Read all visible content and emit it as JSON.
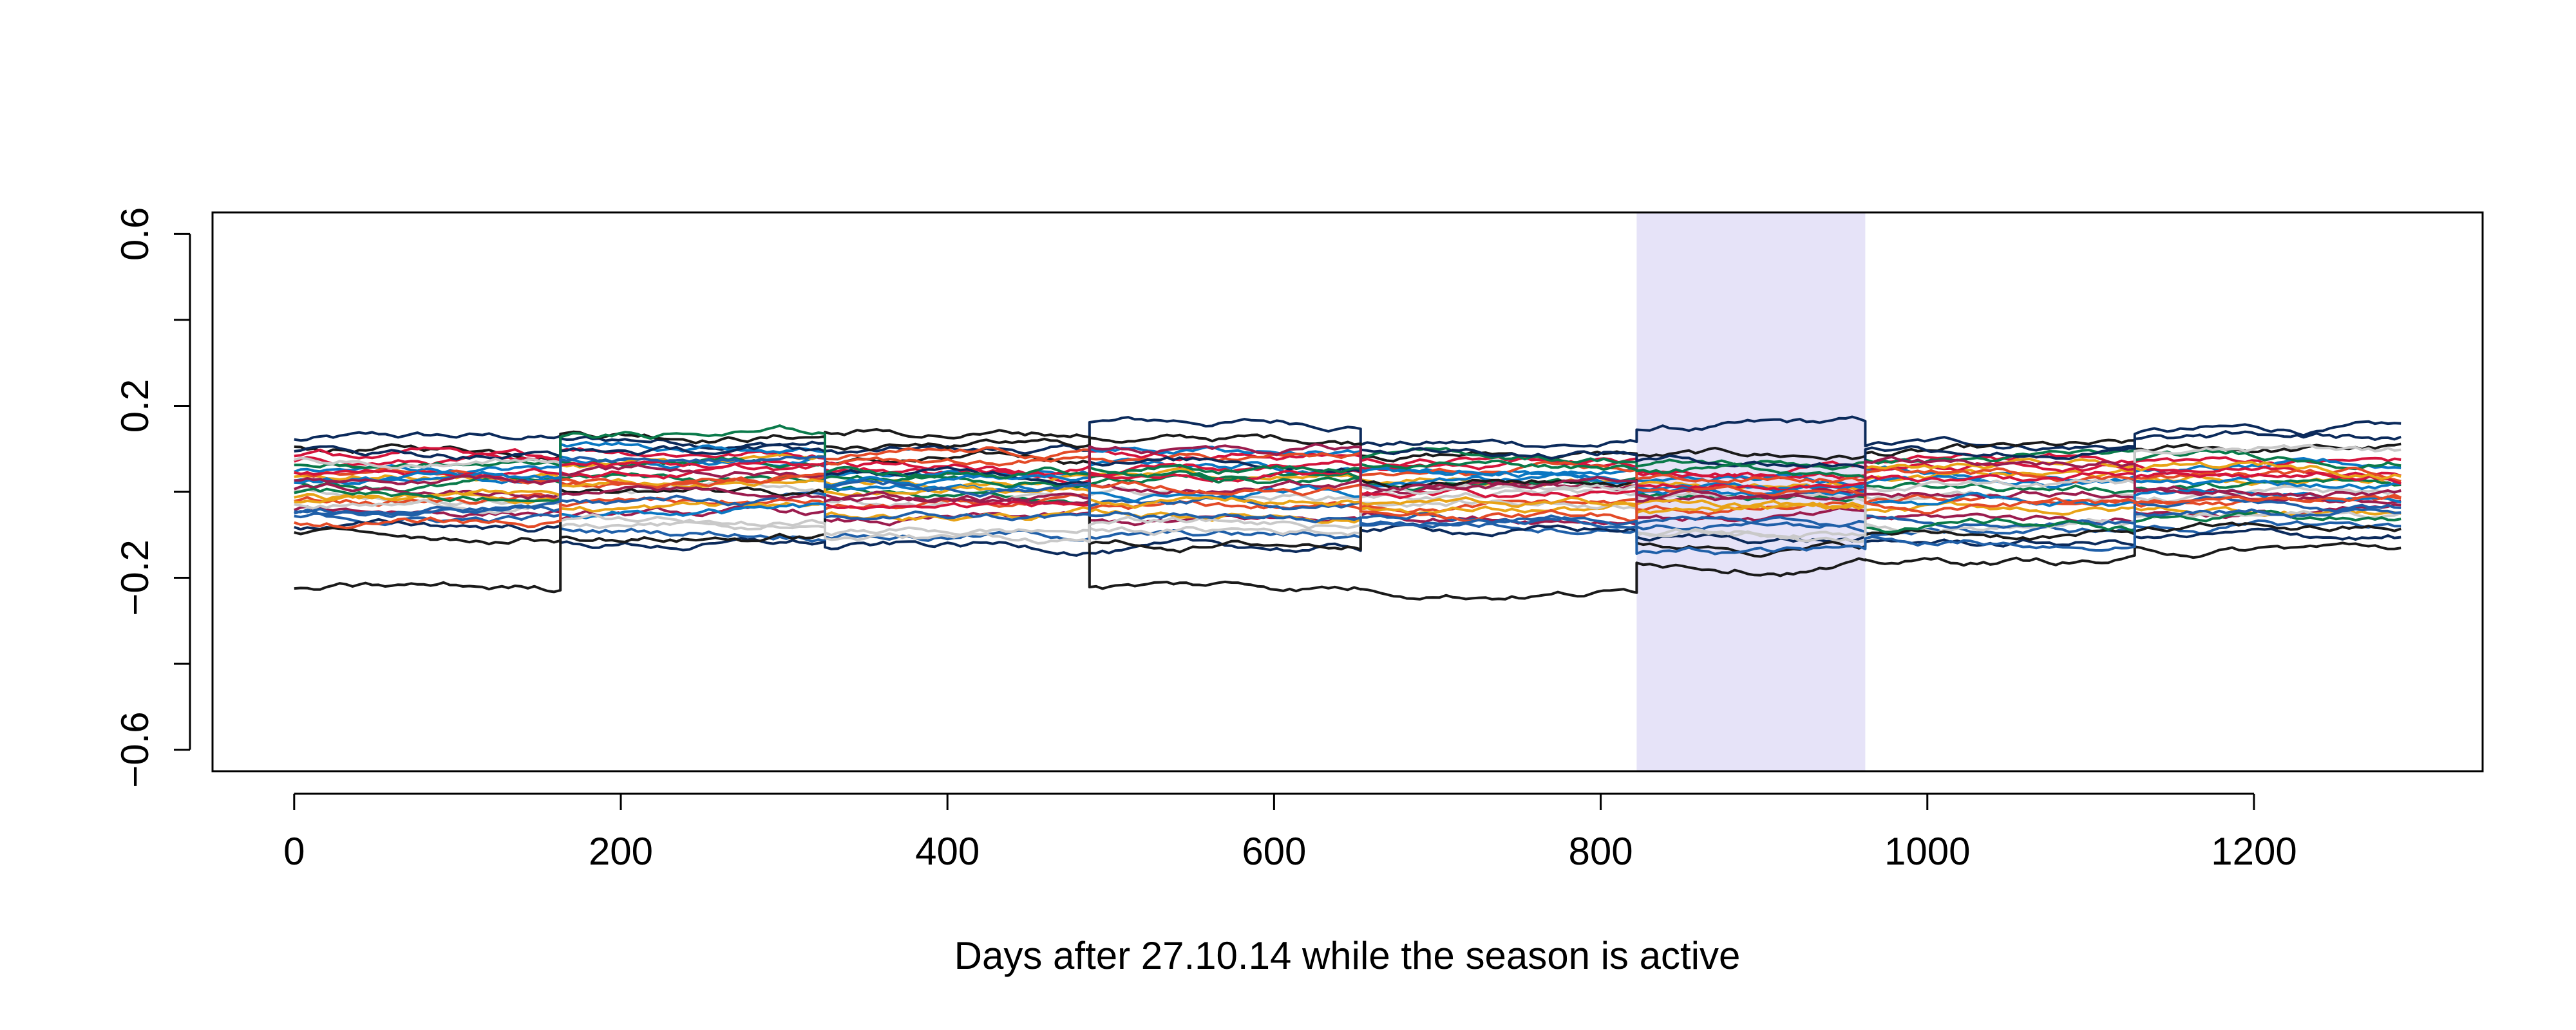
{
  "chart_data": {
    "type": "line",
    "title": "",
    "xlabel": "Days after 27.10.14 while the season is active",
    "ylabel": "",
    "xlim": [
      -50,
      1340
    ],
    "ylim": [
      -0.65,
      0.65
    ],
    "x_ticks": [
      0,
      200,
      400,
      600,
      800,
      1000,
      1200
    ],
    "x_tick_labels": [
      "0",
      "200",
      "400",
      "600",
      "800",
      "1000",
      "1200"
    ],
    "y_ticks": [
      -0.6,
      -0.4,
      -0.2,
      0,
      0.2,
      0.4,
      0.6
    ],
    "y_tick_labels": [
      "−0.6",
      "",
      "−0.2",
      "",
      "0.2",
      "",
      "0.6"
    ],
    "grid": false,
    "legend": "none",
    "highlight_region": {
      "x_start": 822,
      "x_end": 962,
      "color": "#e6e3f8"
    },
    "season_boundaries": [
      0,
      163,
      325,
      487,
      653,
      822,
      962,
      1127,
      1290
    ],
    "line_colors": [
      "#0b2a5b",
      "#1a1a1a",
      "#d4143c",
      "#0a77c2",
      "#e8a317",
      "#0a7a4a",
      "#c9c9c9",
      "#e34a27",
      "#9b1c4e",
      "#1f5fa8"
    ],
    "series_count": 30,
    "series_baselines_by_season": [
      [
        0.12,
        0.1,
        0.07,
        0.05,
        0.04,
        0.02,
        0.0,
        -0.02,
        -0.04,
        -0.06,
        -0.08,
        -0.23,
        0.08,
        0.03,
        -0.01,
        0.06,
        -0.03,
        0.05,
        0.01,
        -0.05,
        0.09,
        -0.1,
        0.04,
        0.02,
        -0.02,
        0.0,
        0.07,
        -0.07,
        0.03,
        -0.04
      ],
      [
        0.12,
        0.14,
        0.1,
        0.08,
        0.06,
        0.03,
        0.0,
        -0.03,
        -0.06,
        -0.09,
        -0.12,
        -0.1,
        0.05,
        0.11,
        -0.04,
        0.07,
        -0.08,
        0.02,
        0.04,
        -0.02,
        0.09,
        0.0,
        0.06,
        -0.05,
        0.01,
        0.13,
        -0.07,
        0.03,
        -0.01,
        0.08
      ],
      [
        0.09,
        0.07,
        0.05,
        0.04,
        0.02,
        0.0,
        -0.02,
        -0.04,
        -0.07,
        -0.1,
        -0.13,
        0.14,
        0.06,
        0.01,
        -0.05,
        0.03,
        -0.09,
        0.08,
        -0.01,
        -0.06,
        0.04,
        0.1,
        -0.03,
        0.02,
        0.0,
        0.05,
        -0.11,
        0.07,
        -0.02,
        0.01
      ],
      [
        0.16,
        0.12,
        0.09,
        0.06,
        0.04,
        0.02,
        -0.01,
        -0.04,
        -0.07,
        -0.11,
        -0.14,
        -0.22,
        0.05,
        0.1,
        -0.05,
        0.03,
        -0.09,
        0.08,
        0.01,
        -0.03,
        0.07,
        -0.12,
        0.04,
        0.0,
        -0.02,
        0.06,
        -0.08,
        0.02,
        0.11,
        -0.06
      ],
      [
        0.11,
        0.09,
        0.07,
        0.05,
        0.03,
        0.01,
        -0.01,
        -0.03,
        -0.05,
        -0.07,
        -0.09,
        -0.23,
        0.06,
        0.02,
        -0.04,
        0.08,
        -0.02,
        0.04,
        0.0,
        -0.06,
        0.1,
        0.03,
        -0.01,
        0.05,
        -0.03,
        0.07,
        0.01,
        -0.05,
        0.02,
        -0.08
      ],
      [
        0.15,
        0.08,
        0.05,
        0.03,
        0.02,
        0.0,
        -0.02,
        -0.04,
        -0.06,
        -0.08,
        -0.11,
        -0.16,
        0.04,
        0.01,
        -0.05,
        0.06,
        -0.09,
        0.03,
        -0.01,
        -0.07,
        0.07,
        -0.12,
        0.02,
        0.0,
        -0.03,
        0.05,
        -0.1,
        0.01,
        -0.02,
        -0.14
      ],
      [
        0.11,
        0.09,
        0.07,
        0.05,
        0.03,
        0.01,
        -0.01,
        -0.03,
        -0.06,
        -0.09,
        -0.12,
        -0.16,
        0.06,
        0.02,
        -0.04,
        0.08,
        -0.07,
        0.04,
        0.0,
        -0.05,
        0.1,
        -0.1,
        0.03,
        -0.02,
        0.05,
        -0.08,
        0.01,
        -0.03,
        0.07,
        -0.11
      ],
      [
        0.14,
        0.1,
        0.07,
        0.05,
        0.03,
        0.01,
        -0.01,
        -0.03,
        -0.05,
        -0.08,
        -0.11,
        -0.13,
        0.06,
        0.02,
        -0.04,
        0.08,
        -0.06,
        0.04,
        0.0,
        -0.02,
        0.12,
        -0.09,
        0.03,
        -0.01,
        0.05,
        -0.07,
        0.09,
        -0.03,
        0.01,
        -0.05
      ]
    ]
  }
}
